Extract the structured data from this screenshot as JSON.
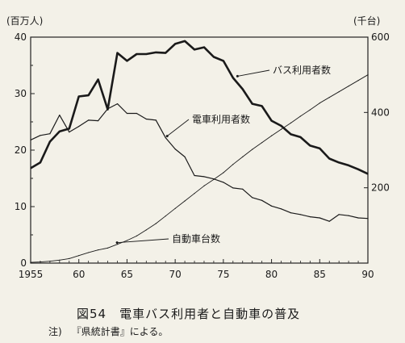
{
  "chart_data": {
    "type": "line",
    "title": "",
    "left_unit": "(百万人)",
    "right_unit": "(千台)",
    "x_ticks": [
      1955,
      60,
      65,
      70,
      75,
      80,
      85,
      90
    ],
    "y_left_ticks": [
      0,
      10,
      20,
      30,
      40
    ],
    "y_right_ticks": [
      200,
      400,
      600
    ],
    "xlim": [
      1955,
      1990
    ],
    "ylim_left": [
      0,
      40
    ],
    "ylim_right": [
      0,
      600
    ],
    "grid": false,
    "series": [
      {
        "name": "バス利用者数",
        "axis": "left",
        "x": [
          1955,
          1956,
          1957,
          1958,
          1959,
          1960,
          1961,
          1962,
          1963,
          1964,
          1965,
          1966,
          1967,
          1968,
          1969,
          1970,
          1971,
          1972,
          1973,
          1974,
          1975,
          1976,
          1977,
          1978,
          1979,
          1980,
          1981,
          1982,
          1983,
          1984,
          1985,
          1986,
          1987,
          1988,
          1989,
          1990
        ],
        "values": [
          16.8,
          17.8,
          21.5,
          23.3,
          23.8,
          29.5,
          29.7,
          32.5,
          27.2,
          37.2,
          35.8,
          37.0,
          37.0,
          37.3,
          37.2,
          38.8,
          39.3,
          37.8,
          38.2,
          36.5,
          35.8,
          32.8,
          30.8,
          28.2,
          27.8,
          25.2,
          24.3,
          22.8,
          22.3,
          20.8,
          20.3,
          18.5,
          17.8,
          17.3,
          16.6,
          15.8
        ]
      },
      {
        "name": "電車利用者数",
        "axis": "left",
        "x": [
          1955,
          1956,
          1957,
          1958,
          1959,
          1960,
          1961,
          1962,
          1963,
          1964,
          1965,
          1966,
          1967,
          1968,
          1969,
          1970,
          1971,
          1972,
          1973,
          1974,
          1975,
          1976,
          1977,
          1978,
          1979,
          1980,
          1981,
          1982,
          1983,
          1984,
          1985,
          1986,
          1987,
          1988,
          1989,
          1990
        ],
        "values": [
          21.8,
          22.6,
          22.9,
          26.2,
          23.2,
          24.2,
          25.3,
          25.2,
          27.3,
          28.2,
          26.5,
          26.5,
          25.5,
          25.3,
          22.2,
          20.2,
          18.8,
          15.5,
          15.3,
          14.9,
          14.3,
          13.3,
          13.1,
          11.6,
          11.1,
          10.1,
          9.6,
          8.9,
          8.6,
          8.2,
          8.0,
          7.4,
          8.6,
          8.4,
          8.0,
          7.9
        ]
      },
      {
        "name": "自動車台数",
        "axis": "right",
        "x": [
          1955,
          1956,
          1957,
          1958,
          1959,
          1960,
          1961,
          1962,
          1963,
          1964,
          1965,
          1966,
          1967,
          1968,
          1969,
          1970,
          1971,
          1972,
          1973,
          1974,
          1975,
          1976,
          1977,
          1978,
          1979,
          1980,
          1981,
          1982,
          1983,
          1984,
          1985,
          1986,
          1987,
          1988,
          1989,
          1990
        ],
        "values": [
          2,
          3,
          5,
          8,
          12,
          20,
          28,
          35,
          40,
          50,
          60,
          72,
          88,
          105,
          125,
          145,
          165,
          185,
          205,
          222,
          240,
          262,
          282,
          302,
          320,
          338,
          355,
          372,
          390,
          407,
          425,
          440,
          455,
          470,
          485,
          500
        ]
      }
    ],
    "annotations": [
      {
        "text": "バス利用者数",
        "series": 0
      },
      {
        "text": "電車利用者数",
        "series": 1
      },
      {
        "text": "自動車台数",
        "series": 2
      }
    ]
  },
  "caption": "図54　電車バス利用者と自動車の普及",
  "note_prefix": "注)",
  "note_text": "『県統計書』による。"
}
